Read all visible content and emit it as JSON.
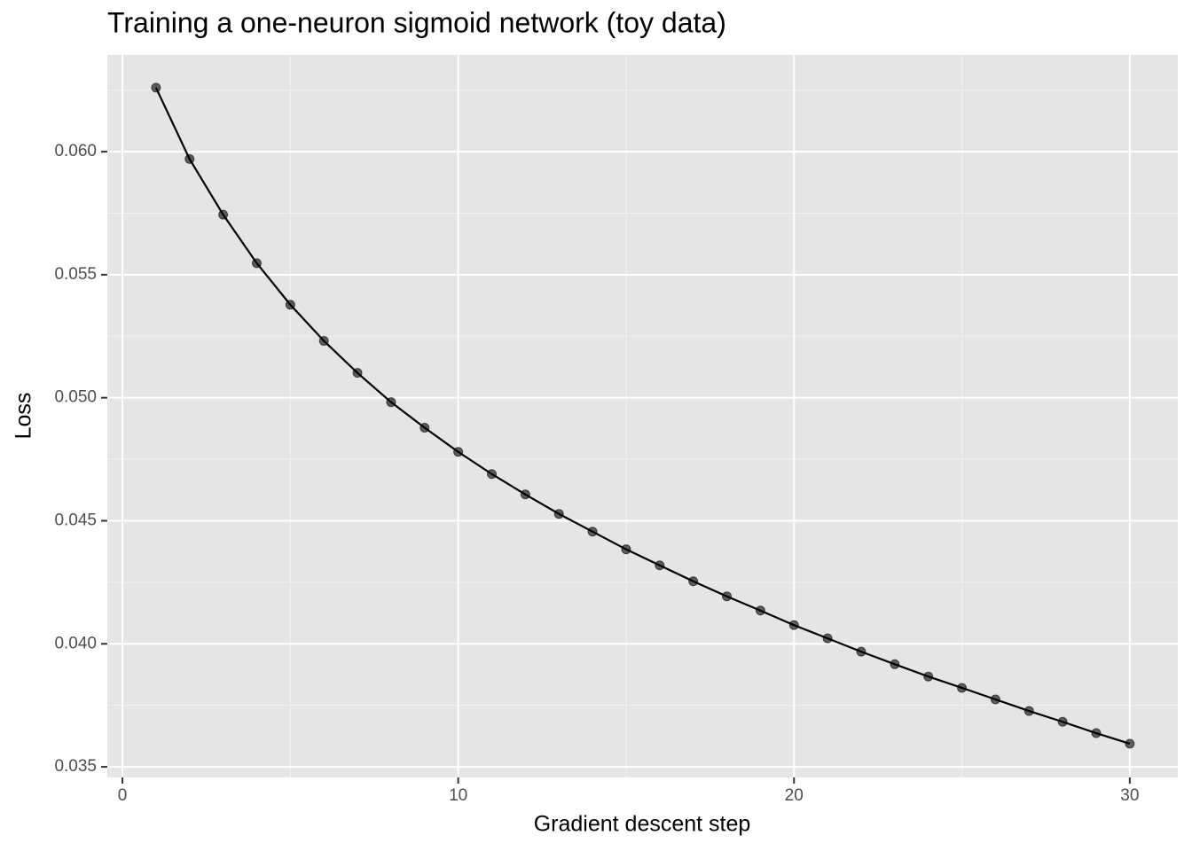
{
  "chart_data": {
    "type": "line",
    "title": "Training a one-neuron sigmoid network (toy data)",
    "x_label": "Gradient descent step",
    "y_label": "Loss",
    "x": [
      1,
      2,
      3,
      4,
      5,
      6,
      7,
      8,
      9,
      10,
      11,
      12,
      13,
      14,
      15,
      16,
      17,
      18,
      19,
      20,
      21,
      22,
      23,
      24,
      25,
      26,
      27,
      28,
      29,
      30
    ],
    "series": [
      {
        "color": "#000000",
        "values": [
          0.0626,
          0.0597,
          0.05744,
          0.05547,
          0.05378,
          0.05231,
          0.05101,
          0.04982,
          0.04878,
          0.0478,
          0.0469,
          0.04607,
          0.04528,
          0.04456,
          0.04384,
          0.04319,
          0.04254,
          0.04193,
          0.04135,
          0.04076,
          0.04022,
          0.03968,
          0.03917,
          0.03867,
          0.03821,
          0.03774,
          0.03727,
          0.03683,
          0.03637,
          0.03594
        ]
      }
    ],
    "xlim": [
      -0.45,
      31.43
    ],
    "xticks": [
      0,
      10,
      20,
      30
    ],
    "ylim": [
      0.03457,
      0.06393
    ],
    "yticks": [
      0.035,
      {
        "value": 0.04,
        "label": "0.040"
      },
      0.045,
      {
        "value": 0.05,
        "label": "0.050"
      },
      0.055,
      {
        "value": 0.06,
        "label": "0.060"
      }
    ],
    "grid": true
  }
}
